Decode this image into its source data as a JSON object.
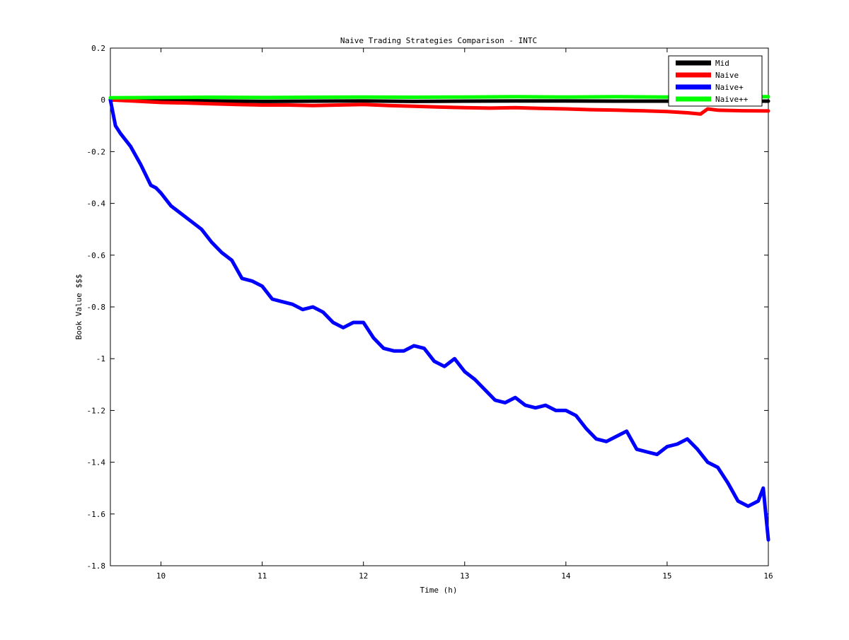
{
  "chart_data": {
    "type": "line",
    "title": "Naive Trading Strategies Comparison - INTC",
    "xlabel": "Time (h)",
    "ylabel": "Book Value $$$",
    "xlim": [
      9.5,
      16
    ],
    "ylim": [
      -1.8,
      0.2
    ],
    "xticks": [
      10,
      11,
      12,
      13,
      14,
      15,
      16
    ],
    "yticks": [
      0.2,
      0,
      -0.2,
      -0.4,
      -0.6,
      -0.8,
      -1,
      -1.2,
      -1.4,
      -1.6,
      -1.8
    ],
    "grid": false,
    "legend_position": "top-right",
    "series": [
      {
        "name": "Mid",
        "color": "#000000",
        "x": [
          9.5,
          10,
          10.5,
          11,
          11.5,
          12,
          12.5,
          13,
          13.5,
          14,
          14.5,
          15,
          15.5,
          16
        ],
        "y": [
          0,
          -0.002,
          -0.004,
          -0.006,
          -0.005,
          -0.004,
          -0.006,
          -0.005,
          -0.004,
          -0.004,
          -0.005,
          -0.005,
          -0.005,
          -0.005
        ]
      },
      {
        "name": "Naive",
        "color": "#ff0000",
        "x": [
          9.5,
          9.75,
          10,
          10.25,
          10.5,
          10.75,
          11,
          11.25,
          11.5,
          11.75,
          12,
          12.25,
          12.5,
          12.75,
          13,
          13.25,
          13.5,
          13.75,
          14,
          14.25,
          14.5,
          14.75,
          15,
          15.2,
          15.33,
          15.4,
          15.5,
          15.75,
          16
        ],
        "y": [
          0,
          -0.005,
          -0.01,
          -0.012,
          -0.015,
          -0.018,
          -0.02,
          -0.02,
          -0.022,
          -0.02,
          -0.018,
          -0.022,
          -0.025,
          -0.028,
          -0.03,
          -0.032,
          -0.03,
          -0.033,
          -0.035,
          -0.038,
          -0.04,
          -0.042,
          -0.045,
          -0.05,
          -0.055,
          -0.035,
          -0.04,
          -0.042,
          -0.043
        ]
      },
      {
        "name": "Naive+",
        "color": "#0000ff",
        "x": [
          9.5,
          9.55,
          9.6,
          9.7,
          9.8,
          9.9,
          9.95,
          10.0,
          10.1,
          10.2,
          10.3,
          10.4,
          10.5,
          10.6,
          10.7,
          10.8,
          10.9,
          11.0,
          11.1,
          11.2,
          11.3,
          11.4,
          11.5,
          11.6,
          11.7,
          11.8,
          11.9,
          12.0,
          12.1,
          12.2,
          12.3,
          12.4,
          12.5,
          12.6,
          12.7,
          12.8,
          12.9,
          13.0,
          13.1,
          13.2,
          13.3,
          13.4,
          13.5,
          13.6,
          13.7,
          13.8,
          13.9,
          14.0,
          14.1,
          14.2,
          14.3,
          14.4,
          14.5,
          14.6,
          14.7,
          14.8,
          14.9,
          15.0,
          15.1,
          15.2,
          15.3,
          15.4,
          15.5,
          15.6,
          15.7,
          15.8,
          15.9,
          15.95,
          16.0
        ],
        "y": [
          0,
          -0.1,
          -0.13,
          -0.18,
          -0.25,
          -0.33,
          -0.34,
          -0.36,
          -0.41,
          -0.44,
          -0.47,
          -0.5,
          -0.55,
          -0.59,
          -0.62,
          -0.69,
          -0.7,
          -0.72,
          -0.77,
          -0.78,
          -0.79,
          -0.81,
          -0.8,
          -0.82,
          -0.86,
          -0.88,
          -0.86,
          -0.86,
          -0.92,
          -0.96,
          -0.97,
          -0.97,
          -0.95,
          -0.96,
          -1.01,
          -1.03,
          -1.0,
          -1.05,
          -1.08,
          -1.12,
          -1.16,
          -1.17,
          -1.15,
          -1.18,
          -1.19,
          -1.18,
          -1.2,
          -1.2,
          -1.22,
          -1.27,
          -1.31,
          -1.32,
          -1.3,
          -1.28,
          -1.35,
          -1.36,
          -1.37,
          -1.34,
          -1.33,
          -1.31,
          -1.35,
          -1.4,
          -1.42,
          -1.48,
          -1.55,
          -1.57,
          -1.55,
          -1.5,
          -1.7
        ]
      },
      {
        "name": "Naive++",
        "color": "#00ff00",
        "x": [
          9.5,
          10,
          10.5,
          11,
          11.5,
          12,
          12.5,
          13,
          13.5,
          14,
          14.5,
          15,
          15.5,
          16
        ],
        "y": [
          0.008,
          0.009,
          0.01,
          0.009,
          0.01,
          0.011,
          0.01,
          0.011,
          0.012,
          0.011,
          0.012,
          0.011,
          0.012,
          0.012
        ]
      }
    ]
  }
}
